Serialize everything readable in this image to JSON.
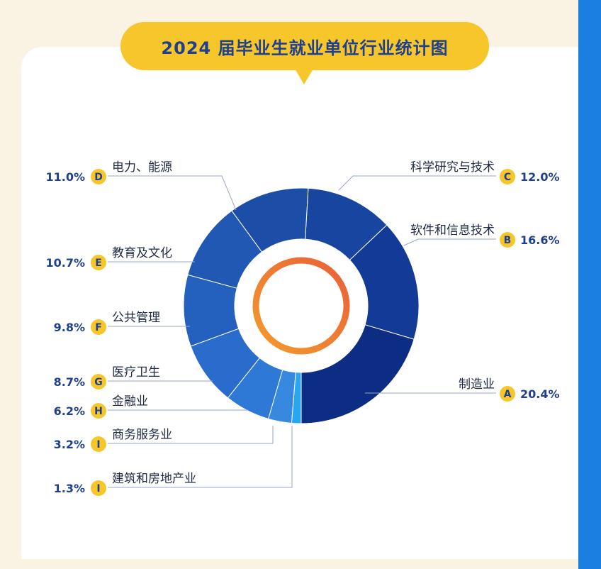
{
  "colors": {
    "background": "#faf3e4",
    "card": "#ffffff",
    "accent_yellow": "#f6c62a",
    "title_text": "#1f3f8f",
    "right_bar": "#1a7fe0",
    "ring_start": "#f39b2c",
    "ring_end": "#e8603a"
  },
  "chart_data": {
    "type": "pie",
    "variant": "donut",
    "title": "2024 届毕业生就业单位行业统计图",
    "slices": [
      {
        "letter": "A",
        "label": "制造业",
        "value": 20.4,
        "pct_label": "20.4%",
        "color": "#0d2d84"
      },
      {
        "letter": "B",
        "label": "软件和信息技术",
        "value": 16.6,
        "pct_label": "16.6%",
        "color": "#123a96"
      },
      {
        "letter": "C",
        "label": "科学研究与技术",
        "value": 12.0,
        "pct_label": "12.0%",
        "color": "#18459f"
      },
      {
        "letter": "D",
        "label": "电力、能源",
        "value": 11.0,
        "pct_label": "11.0%",
        "color": "#1c4ea8"
      },
      {
        "letter": "E",
        "label": "教育及文化",
        "value": 10.7,
        "pct_label": "10.7%",
        "color": "#2058b4"
      },
      {
        "letter": "F",
        "label": "公共管理",
        "value": 9.8,
        "pct_label": "9.8%",
        "color": "#2461bf"
      },
      {
        "letter": "G",
        "label": "医疗卫生",
        "value": 8.7,
        "pct_label": "8.7%",
        "color": "#296ccb"
      },
      {
        "letter": "H",
        "label": "金融业",
        "value": 6.2,
        "pct_label": "6.2%",
        "color": "#2f79d6"
      },
      {
        "letter": "I",
        "label": "商务服务业",
        "value": 3.2,
        "pct_label": "3.2%",
        "color": "#3789e0"
      },
      {
        "letter": "I",
        "label": "建筑和房地产业",
        "value": 1.3,
        "pct_label": "1.3%",
        "color": "#2aa6f0"
      }
    ]
  }
}
